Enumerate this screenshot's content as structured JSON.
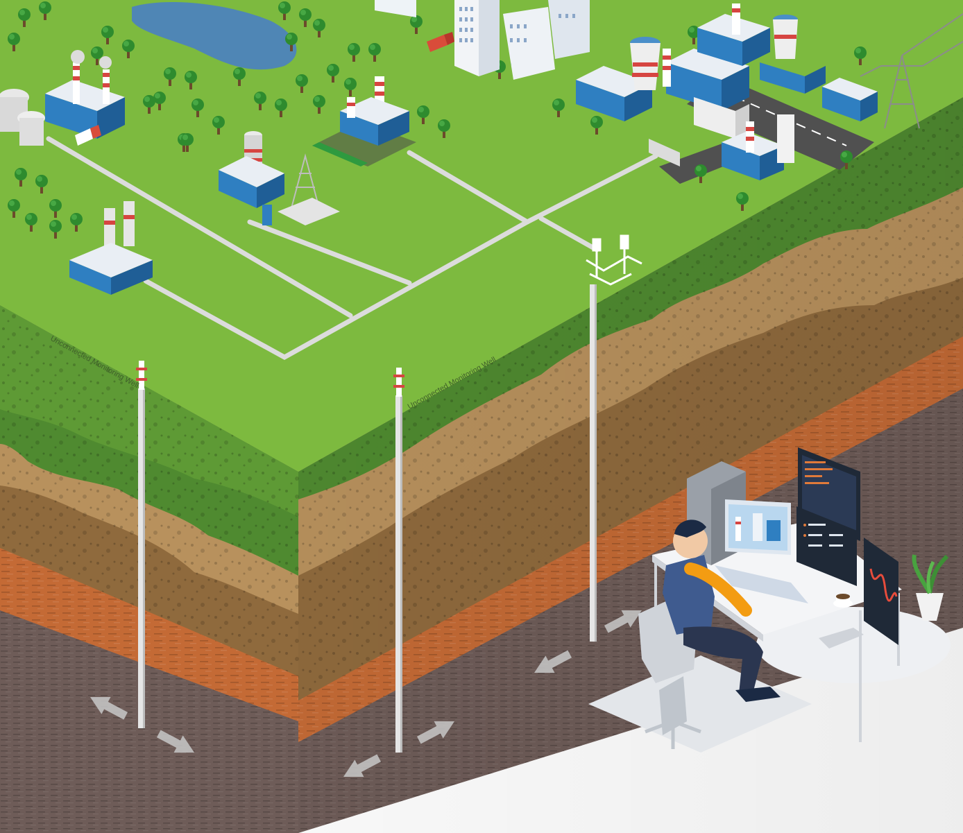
{
  "labels": {
    "well_left": "Unconnected Monitoring Well",
    "well_middle": "Unconnected Monitoring Well"
  },
  "colors": {
    "grass_top": "#7dba3f",
    "grass_side": "#5e9a35",
    "soil_green": "#4f8a30",
    "soil_tan": "#b8915d",
    "soil_brown": "#8f6a3d",
    "soil_orange": "#c46a35",
    "rock_gray": "#6e5c58",
    "road": "#d9d9d9",
    "building_blue": "#2f7fc1",
    "pond": "#4f86b5"
  },
  "icons": [
    "factory-icon",
    "cooling-tower-icon",
    "tree-icon",
    "pond-icon",
    "city-icon",
    "truck-icon",
    "power-pylon-icon",
    "well-head-icon",
    "flow-arrow-icon",
    "computer-workstation-icon",
    "person-icon",
    "plant-icon",
    "coffee-cup-icon"
  ]
}
